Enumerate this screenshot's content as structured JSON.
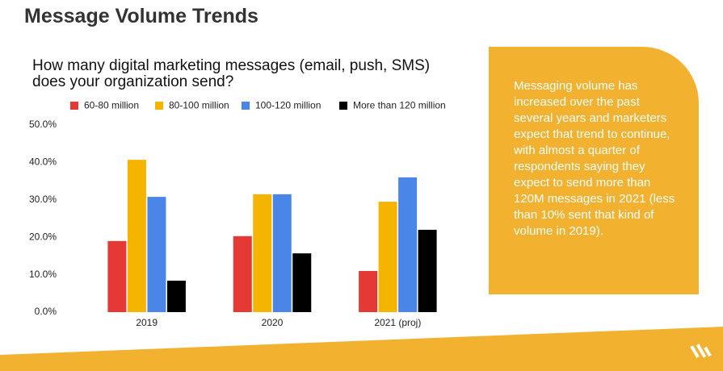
{
  "page_title": "Message Volume Trends",
  "callout": "Messaging volume has increased over the past several years and marketers expect that trend to continue, with almost a quarter of respondents saying they expect to send more than 120M messages in 2021 (less than 10% sent that kind of volume in 2019).",
  "chart_data": {
    "type": "bar",
    "title": "How many digital marketing messages (email, push, SMS) does your organization send?",
    "categories": [
      "2019",
      "2020",
      "2021 (proj)"
    ],
    "series": [
      {
        "name": "60-80 million",
        "color": "#e53935",
        "values": [
          19,
          20.3,
          11
        ]
      },
      {
        "name": "80-100 million",
        "color": "#f4b400",
        "values": [
          40.7,
          31.5,
          29.5
        ]
      },
      {
        "name": "100-120 million",
        "color": "#4a86e8",
        "values": [
          30.8,
          31.5,
          36
        ]
      },
      {
        "name": "More than 120 million",
        "color": "#000000",
        "values": [
          8.4,
          15.7,
          22
        ]
      }
    ],
    "ylim": [
      0,
      50
    ],
    "yticks": [
      {
        "value": 0,
        "label": "0.0%"
      },
      {
        "value": 10,
        "label": "10.0%"
      },
      {
        "value": 20,
        "label": "20.0%"
      },
      {
        "value": 30,
        "label": "30.0%"
      },
      {
        "value": 40,
        "label": "40.0%"
      },
      {
        "value": 50,
        "label": "50.0%"
      }
    ],
    "grid": false
  }
}
